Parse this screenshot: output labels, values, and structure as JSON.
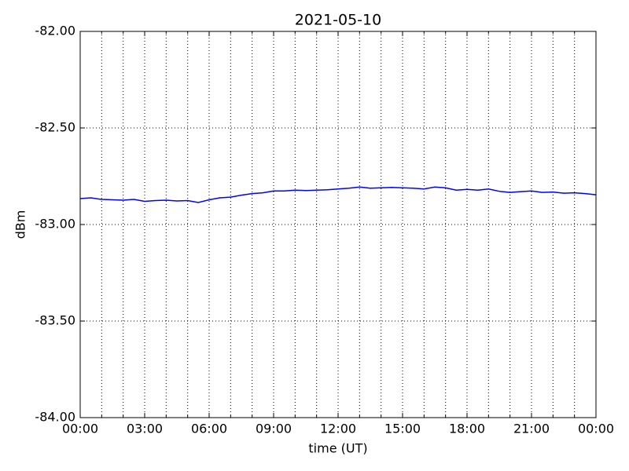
{
  "chart_data": {
    "type": "line",
    "title": "2021-05-10",
    "xlabel": "time (UT)",
    "ylabel": "dBm",
    "x": [
      0,
      0.5,
      1,
      1.5,
      2,
      2.5,
      3,
      3.5,
      4,
      4.5,
      5,
      5.5,
      6,
      6.5,
      7,
      7.5,
      8,
      8.5,
      9,
      9.5,
      10,
      10.5,
      11,
      11.5,
      12,
      12.5,
      13,
      13.5,
      14,
      14.5,
      15,
      15.5,
      16,
      16.5,
      17,
      17.5,
      18,
      18.5,
      19,
      19.5,
      20,
      20.5,
      21,
      21.5,
      22,
      22.5,
      23,
      23.5,
      24
    ],
    "series": [
      {
        "color": "#0000ff",
        "values": [
          -82.866,
          -82.862,
          -82.87,
          -82.872,
          -82.874,
          -82.87,
          -82.88,
          -82.876,
          -82.874,
          -82.878,
          -82.876,
          -82.886,
          -82.872,
          -82.862,
          -82.858,
          -82.848,
          -82.84,
          -82.836,
          -82.826,
          -82.826,
          -82.822,
          -82.824,
          -82.822,
          -82.82,
          -82.816,
          -82.812,
          -82.806,
          -82.812,
          -82.81,
          -82.808,
          -82.81,
          -82.812,
          -82.816,
          -82.806,
          -82.81,
          -82.822,
          -82.818,
          -82.822,
          -82.816,
          -82.828,
          -82.834,
          -82.83,
          -82.826,
          -82.834,
          -82.832,
          -82.838,
          -82.836,
          -82.84,
          -82.846
        ]
      }
    ],
    "xlim": [
      0,
      24
    ],
    "xticks": [
      {
        "value": 0,
        "label": "00:00"
      },
      {
        "value": 3,
        "label": "03:00"
      },
      {
        "value": 6,
        "label": "06:00"
      },
      {
        "value": 9,
        "label": "09:00"
      },
      {
        "value": 12,
        "label": "12:00"
      },
      {
        "value": 15,
        "label": "15:00"
      },
      {
        "value": 18,
        "label": "18:00"
      },
      {
        "value": 21,
        "label": "21:00"
      },
      {
        "value": 24,
        "label": "00:00"
      }
    ],
    "xminorticks": [
      1,
      2,
      4,
      5,
      7,
      8,
      10,
      11,
      13,
      14,
      16,
      17,
      19,
      20,
      22,
      23
    ],
    "ylim": [
      -84,
      -82
    ],
    "yticks": [
      {
        "value": -84,
        "label": "-84.00"
      },
      {
        "value": -83.5,
        "label": "-83.50"
      },
      {
        "value": -83,
        "label": "-83.00"
      },
      {
        "value": -82.5,
        "label": "-82.50"
      },
      {
        "value": -82,
        "label": "-82.00"
      }
    ],
    "grid": true
  }
}
